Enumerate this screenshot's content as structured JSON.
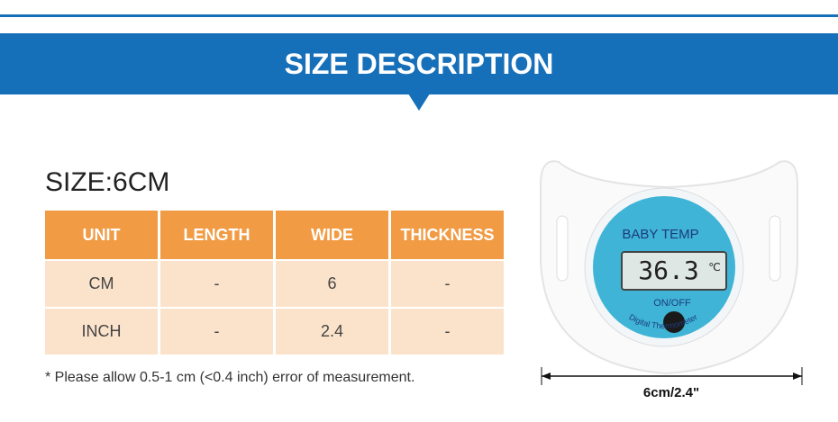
{
  "banner": {
    "title": "SIZE DESCRIPTION"
  },
  "size_heading": "SIZE:6CM",
  "table": {
    "header": [
      "UNIT",
      "LENGTH",
      "WIDE",
      "THICKNESS"
    ],
    "rows": [
      [
        "CM",
        "-",
        "6",
        "-"
      ],
      [
        "INCH",
        "-",
        "2.4",
        "-"
      ]
    ]
  },
  "note": "* Please allow 0.5-1 cm (<0.4 inch) error of measurement.",
  "product": {
    "brand": "BABY TEMP",
    "display": "36.3",
    "display_unit": "℃",
    "button": "ON/OFF",
    "ring_text": "Digital Thermometer",
    "dimension": "6cm/2.4\""
  }
}
